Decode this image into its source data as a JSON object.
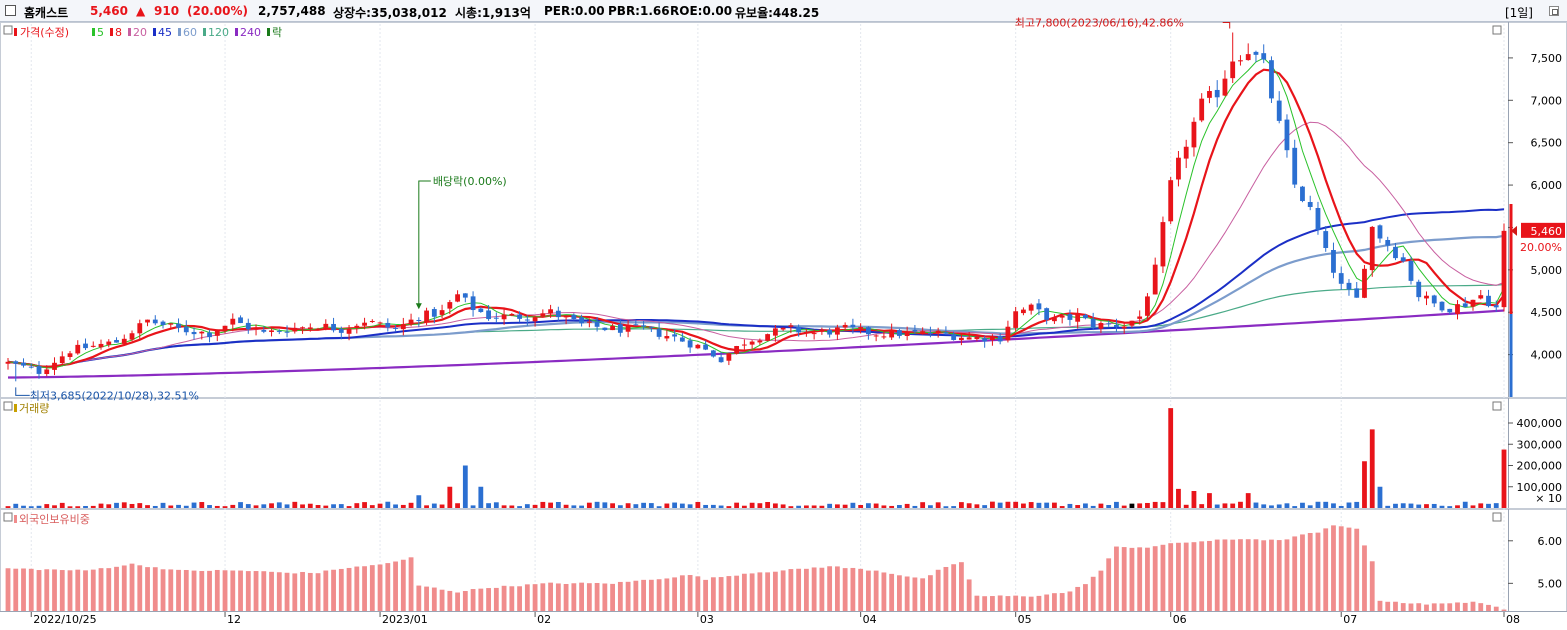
{
  "header": {
    "stock_name": "홈캐스트",
    "price": "5,460",
    "change_arrow": "▲",
    "change": "910",
    "change_pct": "(20.00%)",
    "volume": "2,757,488",
    "listed_shares": "상장수:35,038,012",
    "market_cap": "시총:1,913억",
    "per": "PER:0.00",
    "pbr": "PBR:1.66",
    "roe": "ROE:0.00",
    "holding_ratio": "유보율:448.25",
    "period": "[1일]"
  },
  "legend": {
    "price": "가격(수정)",
    "ma": [
      "5",
      "8",
      "20",
      "45",
      "60",
      "120",
      "240"
    ],
    "ex": "락"
  },
  "colors": {
    "up": "#e8141a",
    "down": "#2b6fd1",
    "ma5": "#2ac22a",
    "ma8": "#e8141a",
    "ma20": "#c85fa0",
    "ma45": "#1b2fc6",
    "ma60": "#7c9ccc",
    "ma120": "#4aaa88",
    "ma240": "#8a2bc2",
    "foreign": "#f08c8c"
  },
  "annotations": {
    "high": "최고7,800(2023/06/16),42.86%",
    "low": "최저3,685(2022/10/28),32.51%",
    "dividend": "배당락(0.00%)",
    "last_price": "5,460",
    "last_pct": "20.00%"
  },
  "volume_panel": {
    "title": "거래량",
    "unit": "× 10"
  },
  "foreign_panel": {
    "title": "외국인보유비중"
  },
  "chart_data": [
    {
      "type": "candlestick",
      "title": "홈캐스트",
      "x": [
        "2022/10/25",
        "12",
        "2023/01",
        "02",
        "03",
        "04",
        "05",
        "06",
        "07",
        "08"
      ],
      "x_tick_positions": [
        3,
        28,
        48,
        68,
        89,
        110,
        130,
        150,
        172,
        193
      ],
      "y_ticks": [
        4000,
        4500,
        5000,
        5500,
        6000,
        6500,
        7000,
        7500
      ],
      "y_tick_labels": [
        "4,000",
        "4,500",
        "5,000",
        "5,500",
        "6,000",
        "6,500",
        "7,000",
        "7,500"
      ],
      "ylim": [
        3500,
        7900
      ],
      "high": {
        "value": 7800,
        "date": "2023/06/16"
      },
      "low": {
        "value": 3685,
        "date": "2022/10/28"
      },
      "last": 5460,
      "series": [
        {
          "name": "5"
        },
        {
          "name": "8"
        },
        {
          "name": "20"
        },
        {
          "name": "45"
        },
        {
          "name": "60"
        },
        {
          "name": "120"
        },
        {
          "name": "240"
        }
      ],
      "keypoints": [
        [
          0,
          3900
        ],
        [
          4,
          3800
        ],
        [
          8,
          4050
        ],
        [
          14,
          4150
        ],
        [
          18,
          4400
        ],
        [
          22,
          4300
        ],
        [
          26,
          4250
        ],
        [
          29,
          4400
        ],
        [
          33,
          4250
        ],
        [
          36,
          4300
        ],
        [
          40,
          4350
        ],
        [
          43,
          4300
        ],
        [
          46,
          4400
        ],
        [
          50,
          4300
        ],
        [
          53,
          4450
        ],
        [
          56,
          4500
        ],
        [
          58,
          4700
        ],
        [
          60,
          4550
        ],
        [
          62,
          4450
        ],
        [
          66,
          4450
        ],
        [
          70,
          4500
        ],
        [
          74,
          4350
        ],
        [
          78,
          4300
        ],
        [
          82,
          4300
        ],
        [
          86,
          4200
        ],
        [
          89,
          4100
        ],
        [
          92,
          3950
        ],
        [
          95,
          4150
        ],
        [
          98,
          4250
        ],
        [
          101,
          4300
        ],
        [
          104,
          4250
        ],
        [
          108,
          4300
        ],
        [
          112,
          4250
        ],
        [
          116,
          4250
        ],
        [
          120,
          4250
        ],
        [
          124,
          4200
        ],
        [
          128,
          4200
        ],
        [
          130,
          4500
        ],
        [
          132,
          4550
        ],
        [
          135,
          4400
        ],
        [
          138,
          4450
        ],
        [
          140,
          4350
        ],
        [
          144,
          4350
        ],
        [
          146,
          4450
        ],
        [
          148,
          5000
        ],
        [
          150,
          6000
        ],
        [
          152,
          6500
        ],
        [
          154,
          6950
        ],
        [
          156,
          7100
        ],
        [
          158,
          7500
        ],
        [
          160,
          7600
        ],
        [
          162,
          7400
        ],
        [
          164,
          6700
        ],
        [
          166,
          6000
        ],
        [
          168,
          5700
        ],
        [
          170,
          5200
        ],
        [
          172,
          4800
        ],
        [
          174,
          4650
        ],
        [
          176,
          5500
        ],
        [
          178,
          5300
        ],
        [
          180,
          5100
        ],
        [
          182,
          4700
        ],
        [
          184,
          4600
        ],
        [
          186,
          4550
        ],
        [
          188,
          4600
        ],
        [
          190,
          4700
        ],
        [
          192,
          4550
        ],
        [
          193,
          5460
        ]
      ]
    },
    {
      "type": "bar",
      "title": "거래량",
      "y_tick_labels": [
        "100,000",
        "200,000",
        "300,000",
        "400,000"
      ],
      "ylim": [
        0,
        480000
      ],
      "spikes": [
        [
          53,
          60000
        ],
        [
          57,
          100000
        ],
        [
          59,
          200000
        ],
        [
          61,
          100000
        ],
        [
          150,
          470000
        ],
        [
          151,
          90000
        ],
        [
          153,
          80000
        ],
        [
          155,
          70000
        ],
        [
          160,
          70000
        ],
        [
          175,
          220000
        ],
        [
          176,
          370000
        ],
        [
          177,
          100000
        ],
        [
          193,
          275000
        ]
      ]
    },
    {
      "type": "bar",
      "title": "외국인보유비중",
      "y_tick_labels": [
        "5.00",
        "6.00"
      ],
      "ylim": [
        4.35,
        6.7
      ],
      "keypoints": [
        [
          0,
          5.35
        ],
        [
          10,
          5.3
        ],
        [
          16,
          5.45
        ],
        [
          22,
          5.3
        ],
        [
          30,
          5.3
        ],
        [
          36,
          5.25
        ],
        [
          40,
          5.25
        ],
        [
          43,
          5.35
        ],
        [
          46,
          5.4
        ],
        [
          50,
          5.5
        ],
        [
          52,
          5.6
        ],
        [
          53,
          4.95
        ],
        [
          58,
          4.8
        ],
        [
          62,
          4.9
        ],
        [
          66,
          4.95
        ],
        [
          70,
          5.0
        ],
        [
          78,
          5.0
        ],
        [
          86,
          5.15
        ],
        [
          88,
          5.2
        ],
        [
          90,
          5.1
        ],
        [
          96,
          5.25
        ],
        [
          100,
          5.3
        ],
        [
          106,
          5.4
        ],
        [
          112,
          5.3
        ],
        [
          118,
          5.1
        ],
        [
          120,
          5.3
        ],
        [
          123,
          5.5
        ],
        [
          125,
          4.7
        ],
        [
          132,
          4.7
        ],
        [
          137,
          4.8
        ],
        [
          139,
          5.0
        ],
        [
          141,
          5.3
        ],
        [
          143,
          5.85
        ],
        [
          147,
          5.85
        ],
        [
          151,
          5.95
        ],
        [
          155,
          6.0
        ],
        [
          160,
          6.05
        ],
        [
          164,
          6.0
        ],
        [
          166,
          6.1
        ],
        [
          169,
          6.2
        ],
        [
          171,
          6.35
        ],
        [
          174,
          6.3
        ],
        [
          176,
          5.5
        ],
        [
          177,
          4.6
        ],
        [
          180,
          4.55
        ],
        [
          183,
          4.5
        ],
        [
          186,
          4.55
        ],
        [
          189,
          4.55
        ],
        [
          192,
          4.45
        ],
        [
          193,
          4.4
        ]
      ]
    }
  ]
}
